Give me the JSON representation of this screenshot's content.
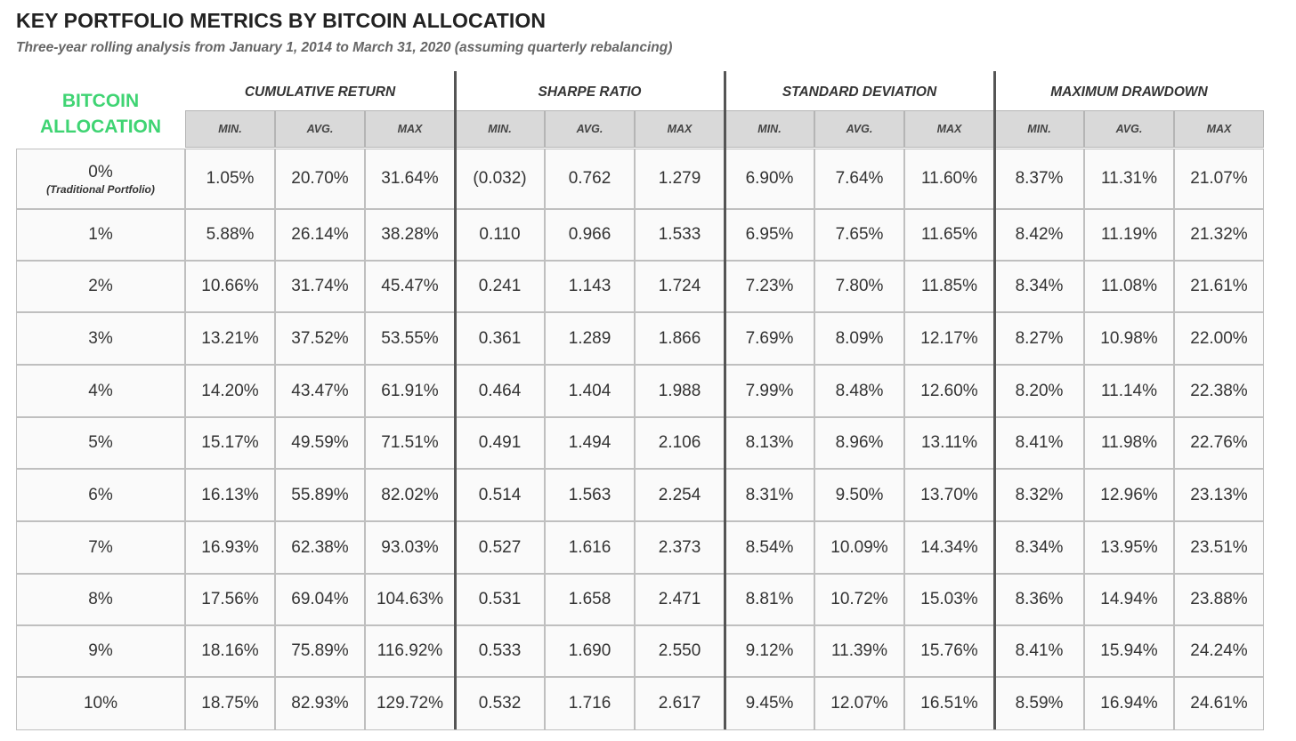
{
  "title": "KEY PORTFOLIO METRICS BY BITCOIN ALLOCATION",
  "subtitle": "Three-year rolling analysis from January 1, 2014 to March 31, 2020 (assuming quarterly rebalancing)",
  "alloc_header": "BITCOIN\nALLOCATION",
  "colors": {
    "accent_green": "#3fd473",
    "header_gray": "#d9d9d9",
    "grid": "#bfbfbf",
    "separator": "#555555"
  },
  "chart_data": {
    "type": "table",
    "groups": [
      {
        "label": "CUMULATIVE RETURN",
        "columns": [
          "MIN.",
          "AVG.",
          "MAX"
        ]
      },
      {
        "label": "SHARPE RATIO",
        "columns": [
          "MIN.",
          "AVG.",
          "MAX"
        ]
      },
      {
        "label": "STANDARD DEVIATION",
        "columns": [
          "MIN.",
          "AVG.",
          "MAX"
        ]
      },
      {
        "label": "MAXIMUM DRAWDOWN",
        "columns": [
          "MIN.",
          "AVG.",
          "MAX"
        ]
      }
    ],
    "rows": [
      {
        "allocation": "0%",
        "note": "(Traditional Portfolio)",
        "values": [
          "1.05%",
          "20.70%",
          "31.64%",
          "(0.032)",
          "0.762",
          "1.279",
          "6.90%",
          "7.64%",
          "11.60%",
          "8.37%",
          "11.31%",
          "21.07%"
        ]
      },
      {
        "allocation": "1%",
        "values": [
          "5.88%",
          "26.14%",
          "38.28%",
          "0.110",
          "0.966",
          "1.533",
          "6.95%",
          "7.65%",
          "11.65%",
          "8.42%",
          "11.19%",
          "21.32%"
        ]
      },
      {
        "allocation": "2%",
        "values": [
          "10.66%",
          "31.74%",
          "45.47%",
          "0.241",
          "1.143",
          "1.724",
          "7.23%",
          "7.80%",
          "11.85%",
          "8.34%",
          "11.08%",
          "21.61%"
        ]
      },
      {
        "allocation": "3%",
        "values": [
          "13.21%",
          "37.52%",
          "53.55%",
          "0.361",
          "1.289",
          "1.866",
          "7.69%",
          "8.09%",
          "12.17%",
          "8.27%",
          "10.98%",
          "22.00%"
        ]
      },
      {
        "allocation": "4%",
        "values": [
          "14.20%",
          "43.47%",
          "61.91%",
          "0.464",
          "1.404",
          "1.988",
          "7.99%",
          "8.48%",
          "12.60%",
          "8.20%",
          "11.14%",
          "22.38%"
        ]
      },
      {
        "allocation": "5%",
        "values": [
          "15.17%",
          "49.59%",
          "71.51%",
          "0.491",
          "1.494",
          "2.106",
          "8.13%",
          "8.96%",
          "13.11%",
          "8.41%",
          "11.98%",
          "22.76%"
        ]
      },
      {
        "allocation": "6%",
        "values": [
          "16.13%",
          "55.89%",
          "82.02%",
          "0.514",
          "1.563",
          "2.254",
          "8.31%",
          "9.50%",
          "13.70%",
          "8.32%",
          "12.96%",
          "23.13%"
        ]
      },
      {
        "allocation": "7%",
        "values": [
          "16.93%",
          "62.38%",
          "93.03%",
          "0.527",
          "1.616",
          "2.373",
          "8.54%",
          "10.09%",
          "14.34%",
          "8.34%",
          "13.95%",
          "23.51%"
        ]
      },
      {
        "allocation": "8%",
        "values": [
          "17.56%",
          "69.04%",
          "104.63%",
          "0.531",
          "1.658",
          "2.471",
          "8.81%",
          "10.72%",
          "15.03%",
          "8.36%",
          "14.94%",
          "23.88%"
        ]
      },
      {
        "allocation": "9%",
        "values": [
          "18.16%",
          "75.89%",
          "116.92%",
          "0.533",
          "1.690",
          "2.550",
          "9.12%",
          "11.39%",
          "15.76%",
          "8.41%",
          "15.94%",
          "24.24%"
        ]
      },
      {
        "allocation": "10%",
        "values": [
          "18.75%",
          "82.93%",
          "129.72%",
          "0.532",
          "1.716",
          "2.617",
          "9.45%",
          "12.07%",
          "16.51%",
          "8.59%",
          "16.94%",
          "24.61%"
        ]
      }
    ]
  }
}
